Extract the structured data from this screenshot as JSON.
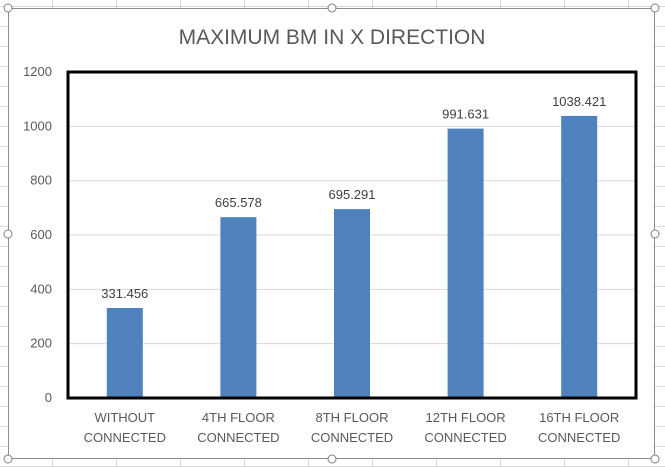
{
  "chart_data": {
    "type": "bar",
    "title": "MAXIMUM BM IN X DIRECTION",
    "categories": [
      [
        "WITHOUT",
        "CONNECTED"
      ],
      [
        "4TH FLOOR",
        "CONNECTED"
      ],
      [
        "8TH FLOOR",
        "CONNECTED"
      ],
      [
        "12TH FLOOR",
        "CONNECTED"
      ],
      [
        "16TH FLOOR",
        "CONNECTED"
      ]
    ],
    "values": [
      331.456,
      665.578,
      695.291,
      991.631,
      1038.421
    ],
    "data_labels": [
      "331.456",
      "665.578",
      "695.291",
      "991.631",
      "1038.421"
    ],
    "ylim": [
      0,
      1200
    ],
    "yticks": [
      "0",
      "200",
      "400",
      "600",
      "800",
      "1000",
      "1200"
    ],
    "xlabel": "",
    "ylabel": "",
    "grid": true,
    "legend": "none",
    "bar_color": "#4f81bd",
    "grid_color": "#d9d9d9",
    "plot_border_color": "#000000"
  }
}
